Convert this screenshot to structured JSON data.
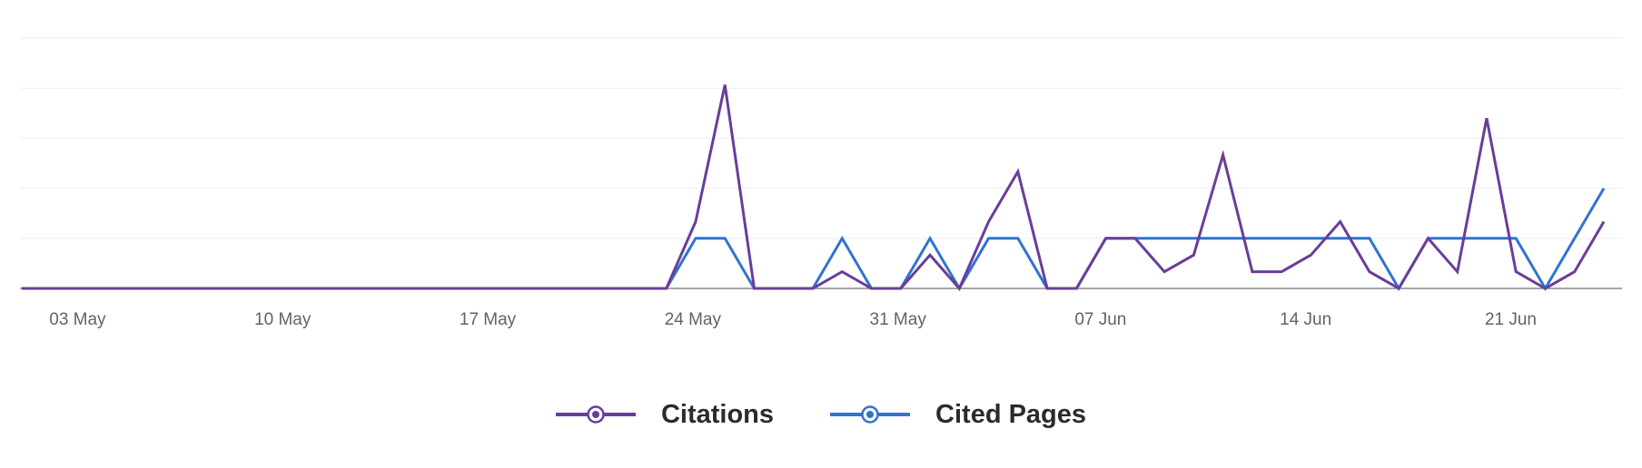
{
  "chart_data": {
    "type": "line",
    "x": [
      "02 May",
      "03 May",
      "04 May",
      "05 May",
      "06 May",
      "07 May",
      "08 May",
      "09 May",
      "10 May",
      "11 May",
      "12 May",
      "13 May",
      "14 May",
      "15 May",
      "16 May",
      "17 May",
      "18 May",
      "19 May",
      "20 May",
      "21 May",
      "22 May",
      "23 May",
      "24 May",
      "25 May",
      "26 May",
      "27 May",
      "28 May",
      "29 May",
      "30 May",
      "31 May",
      "01 Jun",
      "02 Jun",
      "03 Jun",
      "04 Jun",
      "05 Jun",
      "06 Jun",
      "07 Jun",
      "08 Jun",
      "09 Jun",
      "10 Jun",
      "11 Jun",
      "12 Jun",
      "13 Jun",
      "14 Jun",
      "15 Jun",
      "16 Jun",
      "17 Jun",
      "18 Jun",
      "19 Jun",
      "20 Jun",
      "21 Jun",
      "22 Jun",
      "23 Jun",
      "24 Jun",
      "25 Jun"
    ],
    "x_tick_labels": [
      "03 May",
      "10 May",
      "17 May",
      "24 May",
      "31 May",
      "07 Jun",
      "14 Jun",
      "21 Jun"
    ],
    "series": [
      {
        "name": "Citations",
        "color": "#6a3d9a",
        "values": [
          0,
          0,
          0,
          0,
          0,
          0,
          0,
          0,
          0,
          0,
          0,
          0,
          0,
          0,
          0,
          0,
          0,
          0,
          0,
          0,
          0,
          0,
          0,
          4,
          12.2,
          0,
          0,
          0,
          1,
          0,
          0,
          2,
          0,
          4,
          7,
          0,
          0,
          3,
          3,
          1,
          2,
          8,
          1,
          1,
          2,
          4,
          1,
          0,
          3,
          1,
          10.2,
          1,
          0,
          1,
          4
        ]
      },
      {
        "name": "Cited Pages",
        "color": "#2f74d0",
        "values": [
          0,
          0,
          0,
          0,
          0,
          0,
          0,
          0,
          0,
          0,
          0,
          0,
          0,
          0,
          0,
          0,
          0,
          0,
          0,
          0,
          0,
          0,
          0,
          3,
          3,
          0,
          0,
          0,
          3,
          0,
          0,
          3,
          0,
          3,
          3,
          0,
          0,
          3,
          3,
          3,
          3,
          3,
          3,
          3,
          3,
          3,
          3,
          0,
          3,
          3,
          3,
          3,
          0,
          3,
          6
        ]
      }
    ],
    "ylim": [
      0,
      15
    ],
    "y_gridlines": [
      0,
      3,
      6,
      9,
      12,
      15
    ],
    "grid": true,
    "legend_position": "bottom-center"
  }
}
